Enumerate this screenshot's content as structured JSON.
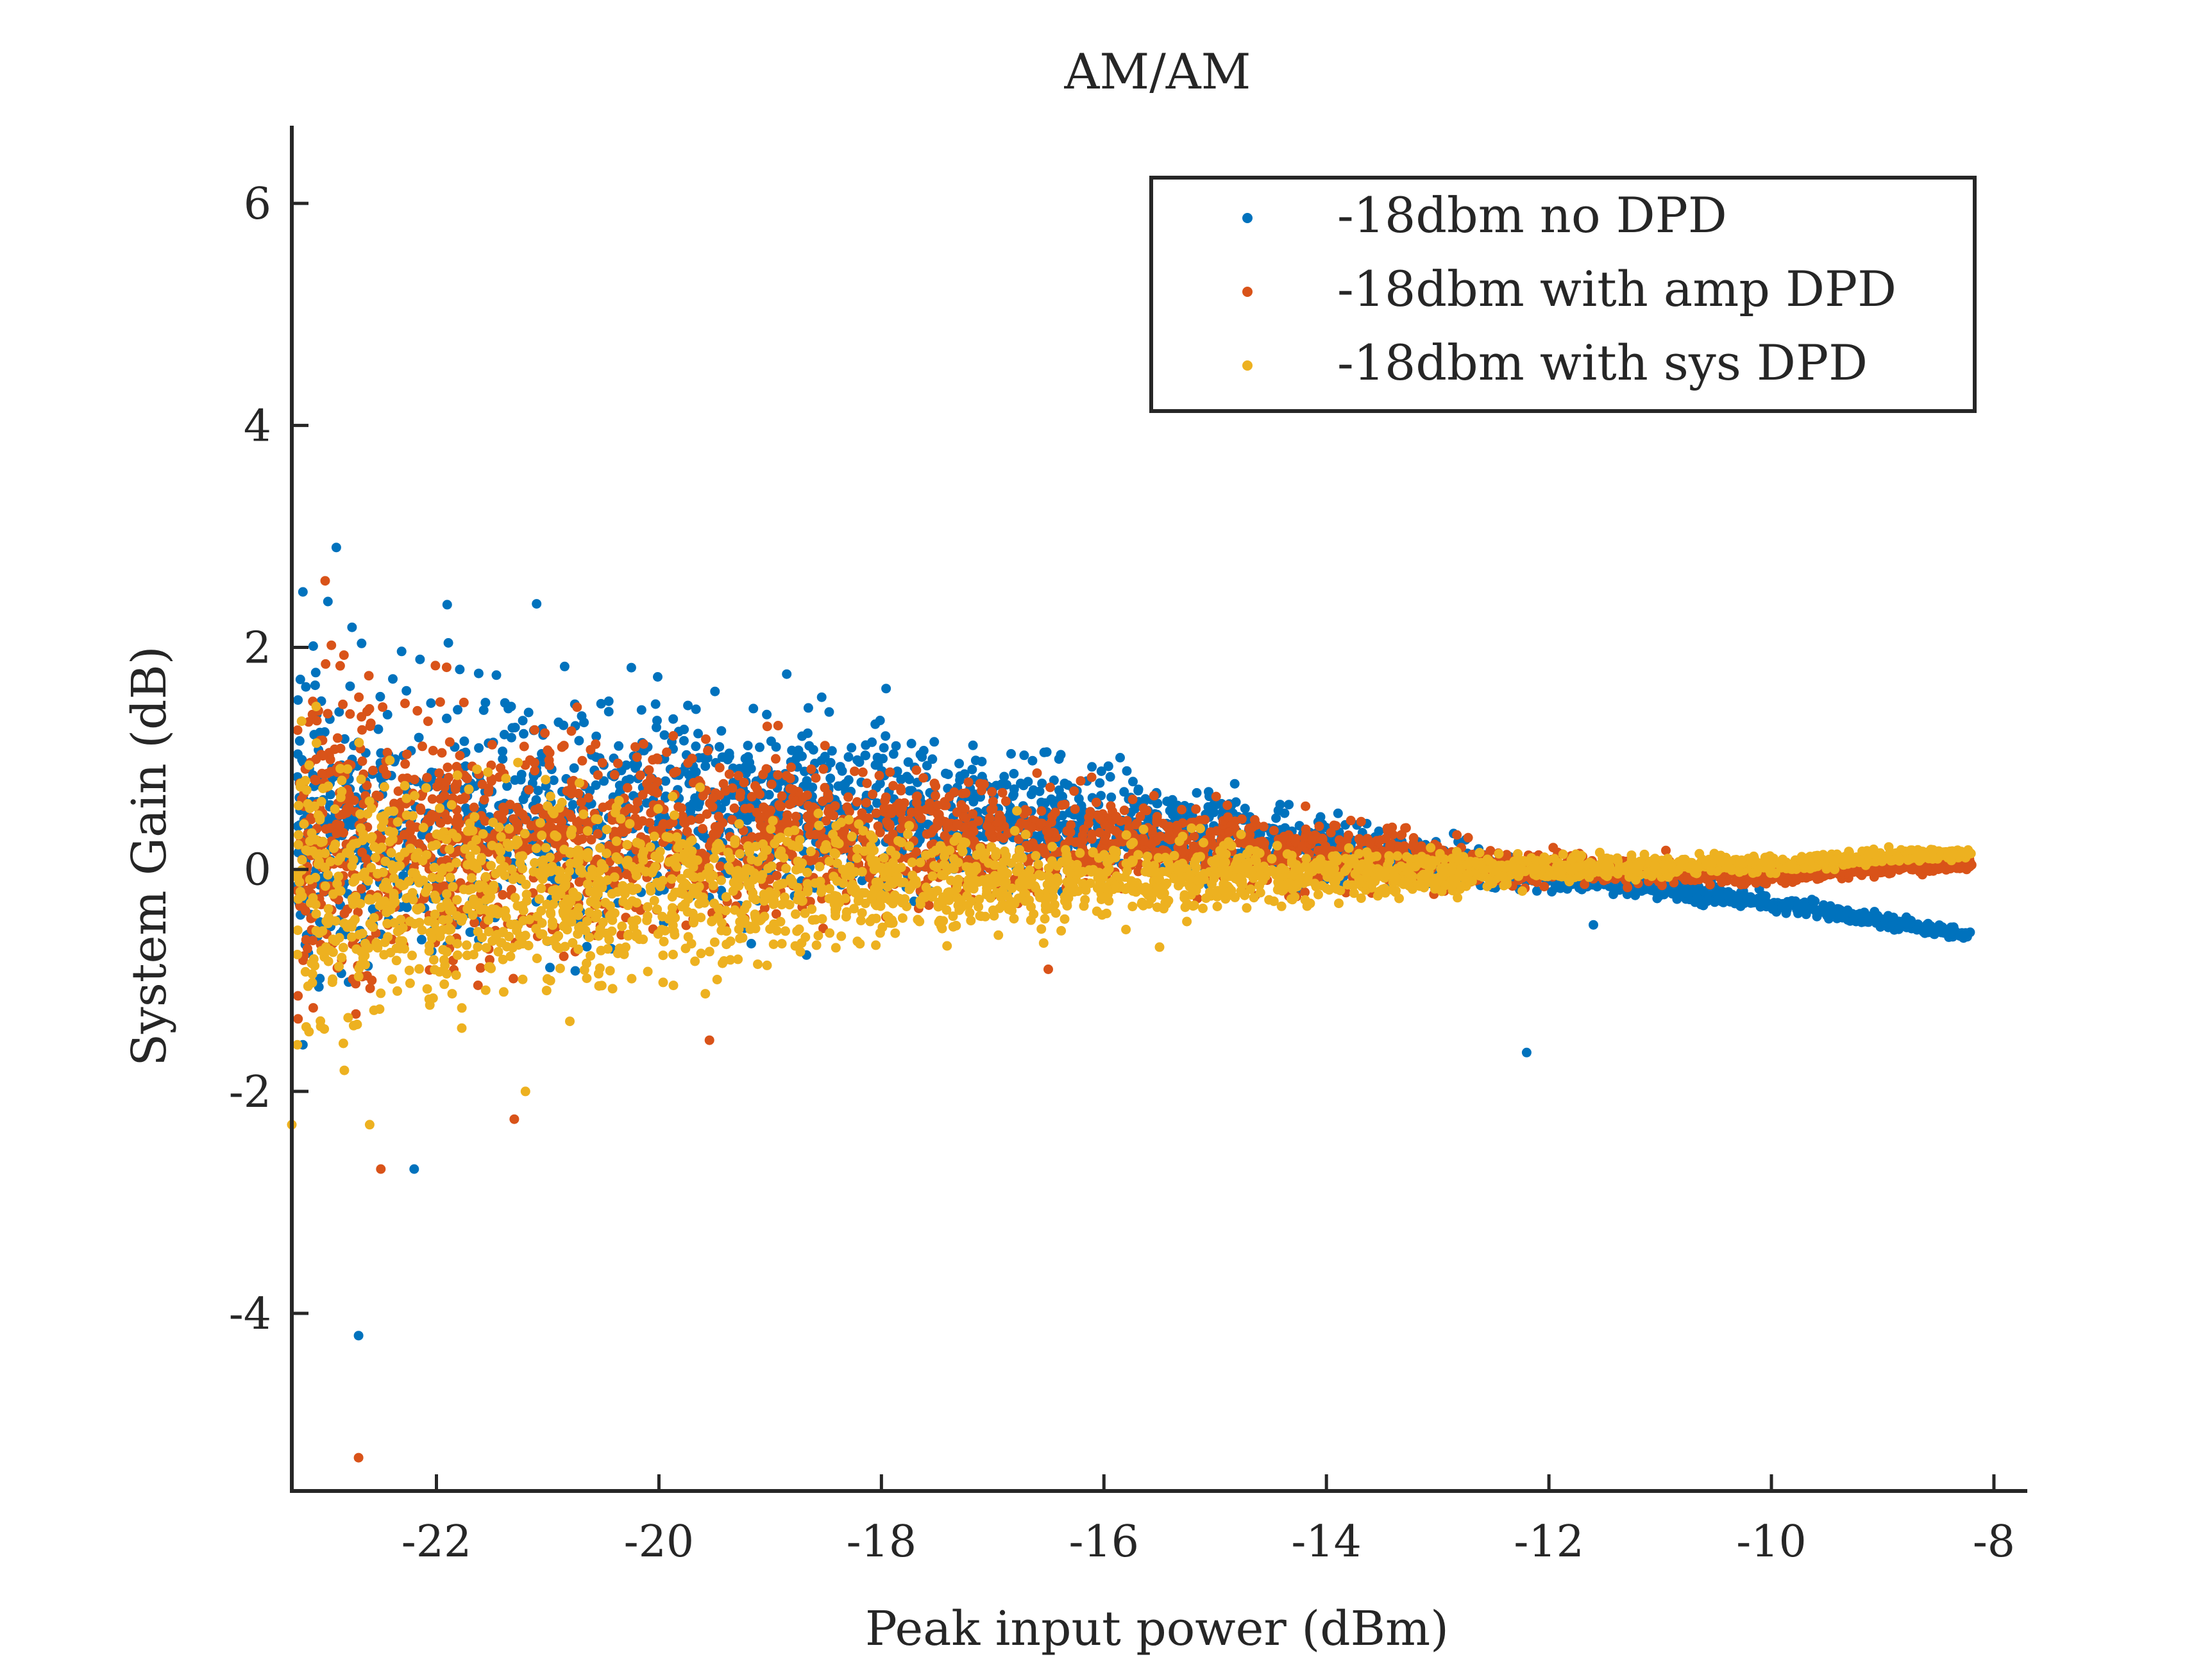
{
  "chart_data": {
    "type": "scatter",
    "title": "AM/AM",
    "xlabel": "Peak input power (dBm)",
    "ylabel": "System Gain (dB)",
    "xlim": [
      -23.3,
      -7.7
    ],
    "ylim": [
      -5.6,
      6.7
    ],
    "xticks": [
      -22,
      -20,
      -18,
      -16,
      -14,
      -12,
      -10,
      -8
    ],
    "yticks": [
      -4,
      -2,
      0,
      2,
      4,
      6
    ],
    "grid": false,
    "legend_position": "top-right",
    "series": [
      {
        "name": "-18dbm no DPD",
        "color": "#0072BD",
        "trend": [
          [
            -23.2,
            0.3
          ],
          [
            -22,
            0.45
          ],
          [
            -20,
            0.55
          ],
          [
            -18,
            0.5
          ],
          [
            -16,
            0.4
          ],
          [
            -14,
            0.2
          ],
          [
            -12,
            -0.05
          ],
          [
            -10,
            -0.3
          ],
          [
            -8.2,
            -0.6
          ]
        ],
        "spread": [
          [
            -23.2,
            1.6
          ],
          [
            -22,
            1.3
          ],
          [
            -20,
            1.0
          ],
          [
            -18,
            0.75
          ],
          [
            -16,
            0.5
          ],
          [
            -14,
            0.3
          ],
          [
            -12,
            0.12
          ],
          [
            -10,
            0.08
          ],
          [
            -8.2,
            0.05
          ]
        ],
        "outliers": [
          [
            -22.9,
            2.9
          ],
          [
            -23.2,
            2.5
          ],
          [
            -22.2,
            -2.7
          ],
          [
            -22.7,
            -4.2
          ],
          [
            -12.2,
            -1.65
          ],
          [
            -11.6,
            -0.5
          ]
        ]
      },
      {
        "name": "-18dbm with amp DPD",
        "color": "#D95319",
        "trend": [
          [
            -23.2,
            0.2
          ],
          [
            -22,
            0.25
          ],
          [
            -20,
            0.3
          ],
          [
            -18,
            0.3
          ],
          [
            -16,
            0.25
          ],
          [
            -14,
            0.15
          ],
          [
            -12,
            0.0
          ],
          [
            -10,
            -0.05
          ],
          [
            -8.2,
            0.05
          ]
        ],
        "spread": [
          [
            -23.2,
            1.5
          ],
          [
            -22,
            1.2
          ],
          [
            -20,
            0.9
          ],
          [
            -18,
            0.65
          ],
          [
            -16,
            0.45
          ],
          [
            -14,
            0.3
          ],
          [
            -12,
            0.15
          ],
          [
            -10,
            0.08
          ],
          [
            -8.2,
            0.05
          ]
        ],
        "outliers": [
          [
            -22.7,
            -5.3
          ],
          [
            -23.0,
            2.6
          ],
          [
            -22.5,
            -2.7
          ],
          [
            -21.3,
            -2.25
          ],
          [
            -16.5,
            -0.9
          ]
        ]
      },
      {
        "name": "-18dbm with sys DPD",
        "color": "#EDB120",
        "trend": [
          [
            -23.2,
            -0.1
          ],
          [
            -22,
            -0.2
          ],
          [
            -20,
            -0.2
          ],
          [
            -18,
            -0.15
          ],
          [
            -16,
            -0.1
          ],
          [
            -14,
            -0.05
          ],
          [
            -12,
            0.0
          ],
          [
            -10,
            0.05
          ],
          [
            -8.2,
            0.15
          ]
        ],
        "spread": [
          [
            -23.2,
            1.3
          ],
          [
            -22,
            1.05
          ],
          [
            -20,
            0.8
          ],
          [
            -18,
            0.55
          ],
          [
            -16,
            0.38
          ],
          [
            -14,
            0.25
          ],
          [
            -12,
            0.12
          ],
          [
            -10,
            0.08
          ],
          [
            -8.2,
            0.05
          ]
        ],
        "outliers": [
          [
            -23.3,
            -2.3
          ],
          [
            -22.6,
            -2.3
          ],
          [
            -21.2,
            -2.0
          ],
          [
            -15.5,
            -0.7
          ]
        ]
      }
    ]
  }
}
